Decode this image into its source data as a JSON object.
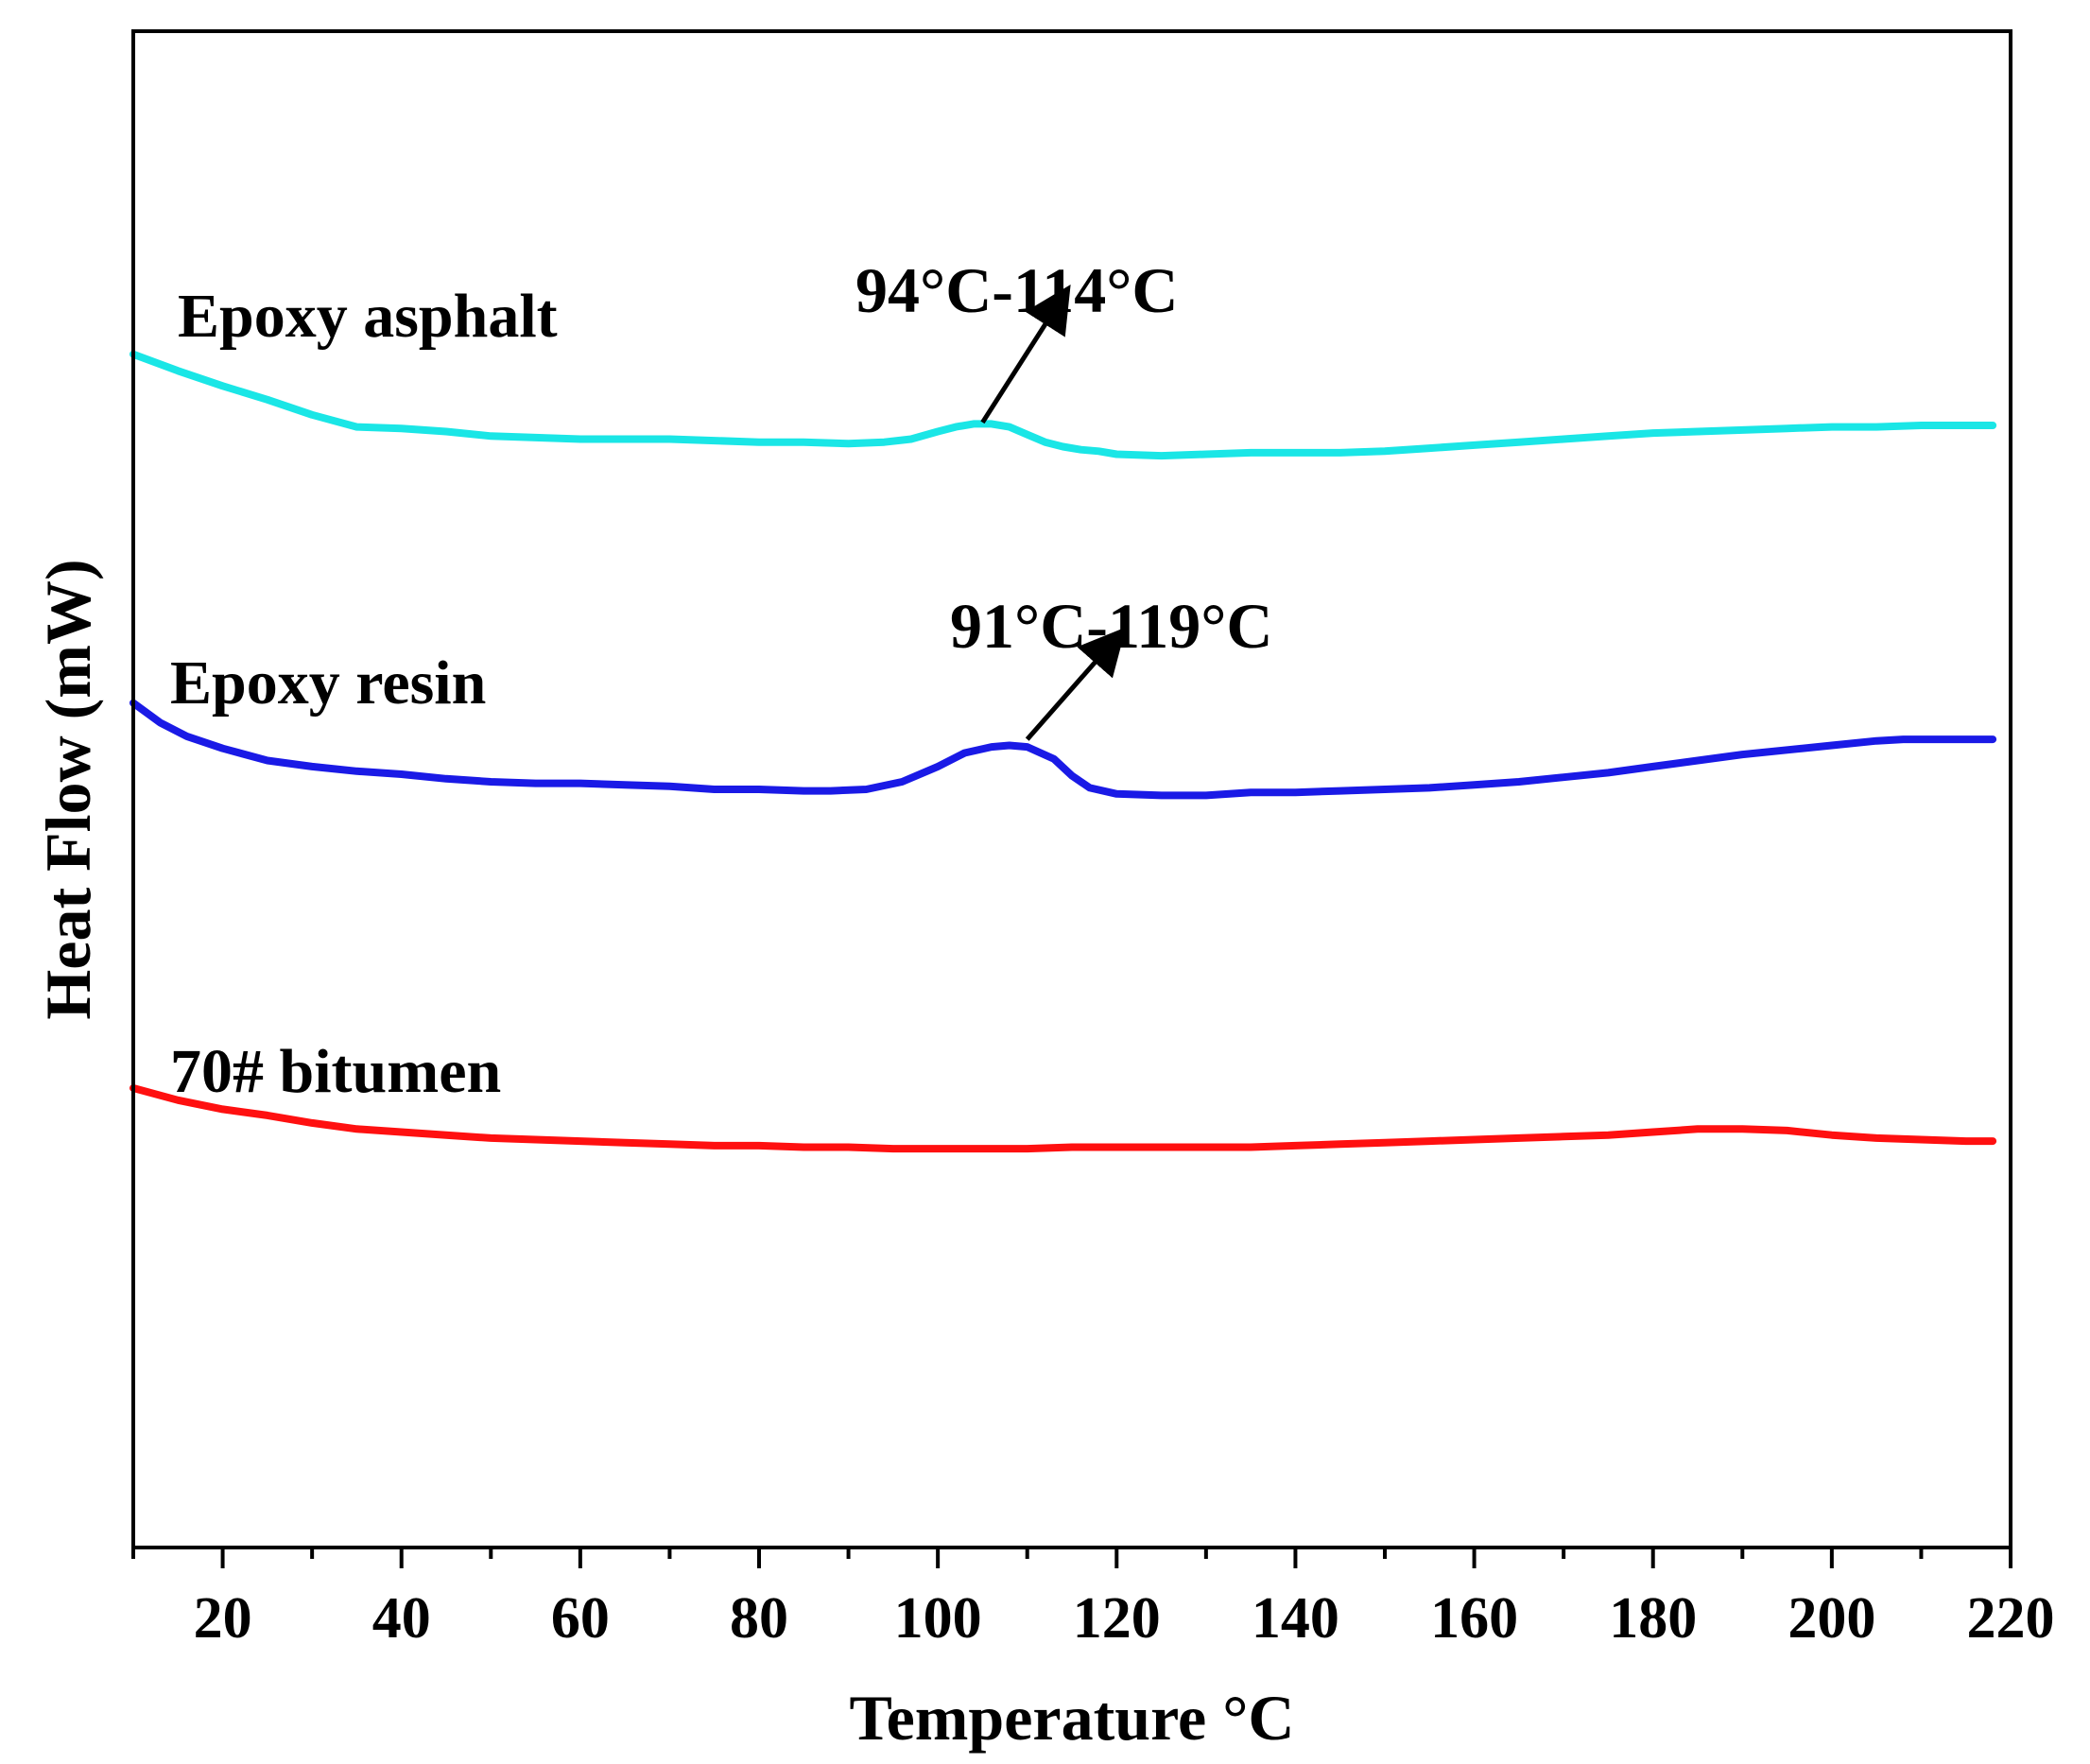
{
  "chart_data": {
    "type": "line",
    "title": "",
    "xlabel": "Temperature °C",
    "ylabel": "Heat Flow (mW)",
    "xlim": [
      10,
      220
    ],
    "ylim": [
      0,
      100
    ],
    "x_ticks": [
      20,
      40,
      60,
      80,
      100,
      120,
      140,
      160,
      180,
      200,
      220
    ],
    "x_tick_labels": [
      "20",
      "40",
      "60",
      "80",
      "100",
      "120",
      "140",
      "160",
      "180",
      "200",
      "220"
    ],
    "y_ticks_shown": false,
    "grid": false,
    "series": [
      {
        "name": "Epoxy asphalt",
        "color": "#1ae6e6",
        "x": [
          10,
          15,
          20,
          25,
          30,
          35,
          40,
          45,
          50,
          55,
          60,
          65,
          70,
          75,
          80,
          85,
          90,
          94,
          97,
          100,
          102,
          104,
          106,
          108,
          110,
          112,
          114,
          116,
          118,
          120,
          125,
          130,
          135,
          140,
          145,
          150,
          155,
          160,
          165,
          170,
          175,
          180,
          185,
          190,
          195,
          200,
          205,
          210,
          215,
          218
        ],
        "values": [
          78.7,
          77.6,
          76.6,
          75.7,
          74.7,
          73.9,
          73.8,
          73.6,
          73.3,
          73.2,
          73.1,
          73.1,
          73.1,
          73.0,
          72.9,
          72.9,
          72.8,
          72.9,
          73.1,
          73.6,
          73.9,
          74.1,
          74.1,
          73.9,
          73.4,
          72.9,
          72.6,
          72.4,
          72.3,
          72.1,
          72.0,
          72.1,
          72.2,
          72.2,
          72.2,
          72.3,
          72.5,
          72.7,
          72.9,
          73.1,
          73.3,
          73.5,
          73.6,
          73.7,
          73.8,
          73.9,
          73.9,
          74.0,
          74.0,
          74.0
        ],
        "label_text": "Epoxy asphalt"
      },
      {
        "name": "Epoxy resin",
        "color": "#1a1ae6",
        "x": [
          10,
          13,
          16,
          20,
          25,
          30,
          35,
          40,
          45,
          50,
          55,
          60,
          65,
          70,
          75,
          80,
          85,
          88,
          92,
          96,
          100,
          103,
          106,
          108,
          110,
          113,
          115,
          117,
          120,
          125,
          130,
          135,
          140,
          145,
          150,
          155,
          160,
          165,
          170,
          175,
          180,
          185,
          190,
          195,
          200,
          205,
          208,
          212,
          216,
          218
        ],
        "values": [
          55.7,
          54.4,
          53.5,
          52.7,
          51.9,
          51.5,
          51.2,
          51.0,
          50.7,
          50.5,
          50.4,
          50.4,
          50.3,
          50.2,
          50.0,
          50.0,
          49.9,
          49.9,
          50.0,
          50.5,
          51.5,
          52.4,
          52.8,
          52.9,
          52.8,
          52.0,
          50.9,
          50.1,
          49.7,
          49.6,
          49.6,
          49.8,
          49.8,
          49.9,
          50.0,
          50.1,
          50.3,
          50.5,
          50.8,
          51.1,
          51.5,
          51.9,
          52.3,
          52.6,
          52.9,
          53.2,
          53.3,
          53.3,
          53.3,
          53.3
        ],
        "label_text": "Epoxy resin"
      },
      {
        "name": "70# bitumen",
        "color": "#ff1010",
        "x": [
          10,
          15,
          20,
          25,
          30,
          35,
          40,
          45,
          50,
          55,
          60,
          65,
          70,
          75,
          80,
          85,
          90,
          95,
          100,
          105,
          110,
          115,
          120,
          125,
          130,
          135,
          140,
          145,
          150,
          155,
          160,
          165,
          170,
          175,
          180,
          185,
          190,
          195,
          200,
          205,
          210,
          215,
          218
        ],
        "values": [
          30.3,
          29.5,
          28.9,
          28.5,
          28.0,
          27.6,
          27.4,
          27.2,
          27.0,
          26.9,
          26.8,
          26.7,
          26.6,
          26.5,
          26.5,
          26.4,
          26.4,
          26.3,
          26.3,
          26.3,
          26.3,
          26.4,
          26.4,
          26.4,
          26.4,
          26.4,
          26.5,
          26.6,
          26.7,
          26.8,
          26.9,
          27.0,
          27.1,
          27.2,
          27.4,
          27.6,
          27.6,
          27.5,
          27.2,
          27.0,
          26.9,
          26.8,
          26.8
        ],
        "label_text": "70# bitumen"
      }
    ],
    "annotations": [
      {
        "text": "94°C-114°C",
        "series": "Epoxy asphalt",
        "arrow_from": [
          105,
          74.2
        ],
        "arrow_to": [
          114,
          82.5
        ]
      },
      {
        "text": "91°C-119°C",
        "series": "Epoxy resin",
        "arrow_from": [
          110,
          53.3
        ],
        "arrow_to": [
          120,
          60.0
        ]
      }
    ]
  }
}
